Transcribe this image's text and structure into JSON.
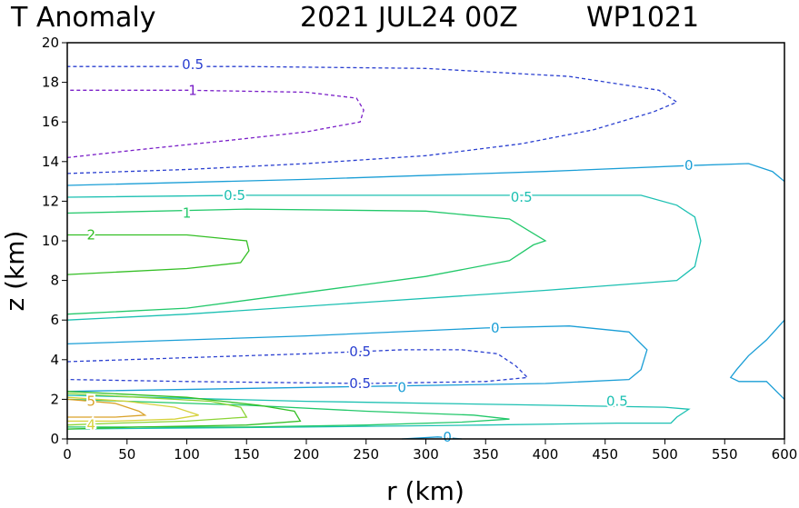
{
  "title": {
    "left": "T Anomaly",
    "date": "2021 JUL24 00Z",
    "storm": "WP1021"
  },
  "chart_data": {
    "type": "contour",
    "xlabel": "r (km)",
    "ylabel": "z (km)",
    "xlim": [
      0,
      600
    ],
    "ylim": [
      0,
      20
    ],
    "xticks": [
      "0",
      "50",
      "100",
      "150",
      "200",
      "250",
      "300",
      "350",
      "400",
      "450",
      "500",
      "550",
      "600"
    ],
    "yticks": [
      "0",
      "2",
      "4",
      "6",
      "8",
      "10",
      "12",
      "14",
      "16",
      "18",
      "20"
    ],
    "grid": false,
    "contours": [
      {
        "level": "-1",
        "color": "#7a1fc8",
        "dashed": true,
        "paths": [
          [
            [
              0,
              14.2
            ],
            [
              60,
              14.6
            ],
            [
              140,
              15.1
            ],
            [
              200,
              15.5
            ],
            [
              245,
              16.0
            ],
            [
              248,
              16.6
            ],
            [
              242,
              17.2
            ],
            [
              200,
              17.5
            ],
            [
              100,
              17.6
            ],
            [
              0,
              17.6
            ]
          ]
        ],
        "labels": [
          {
            "text": "1",
            "x": 105,
            "y": 17.6
          }
        ]
      },
      {
        "level": "-0.5",
        "color": "#2a3fd0",
        "dashed": true,
        "paths": [
          [
            [
              0,
              13.4
            ],
            [
              100,
              13.6
            ],
            [
              200,
              13.9
            ],
            [
              300,
              14.3
            ],
            [
              380,
              14.9
            ],
            [
              440,
              15.6
            ],
            [
              490,
              16.5
            ],
            [
              510,
              17.0
            ],
            [
              495,
              17.6
            ],
            [
              420,
              18.3
            ],
            [
              300,
              18.7
            ],
            [
              150,
              18.8
            ],
            [
              0,
              18.8
            ]
          ],
          [
            [
              0,
              3.9
            ],
            [
              100,
              4.1
            ],
            [
              200,
              4.3
            ],
            [
              280,
              4.5
            ],
            [
              330,
              4.5
            ],
            [
              360,
              4.3
            ],
            [
              375,
              3.7
            ],
            [
              385,
              3.1
            ],
            [
              350,
              2.9
            ],
            [
              250,
              2.8
            ],
            [
              100,
              2.9
            ],
            [
              0,
              3.0
            ]
          ]
        ],
        "labels": [
          {
            "text": "0.5",
            "x": 105,
            "y": 18.9
          },
          {
            "text": "0.5",
            "x": 245,
            "y": 4.4
          },
          {
            "text": "0.5",
            "x": 245,
            "y": 2.8
          }
        ]
      },
      {
        "level": "0",
        "color": "#1a9ed6",
        "dashed": false,
        "paths": [
          [
            [
              0,
              12.8
            ],
            [
              200,
              13.1
            ],
            [
              400,
              13.5
            ],
            [
              520,
              13.8
            ],
            [
              570,
              13.9
            ],
            [
              590,
              13.5
            ],
            [
              600,
              13.0
            ]
          ],
          [
            [
              0,
              4.8
            ],
            [
              200,
              5.2
            ],
            [
              350,
              5.6
            ],
            [
              420,
              5.7
            ],
            [
              470,
              5.4
            ],
            [
              485,
              4.5
            ],
            [
              480,
              3.5
            ],
            [
              470,
              3.0
            ],
            [
              400,
              2.8
            ],
            [
              200,
              2.6
            ],
            [
              0,
              2.4
            ]
          ],
          [
            [
              600,
              6.0
            ],
            [
              585,
              5.0
            ],
            [
              570,
              4.2
            ],
            [
              560,
              3.5
            ],
            [
              555,
              3.1
            ],
            [
              562,
              2.9
            ],
            [
              585,
              2.9
            ],
            [
              600,
              2.0
            ]
          ],
          [
            [
              280,
              0.0
            ],
            [
              310,
              0.1
            ],
            [
              330,
              0.0
            ]
          ]
        ],
        "labels": [
          {
            "text": "0",
            "x": 520,
            "y": 13.8
          },
          {
            "text": "0",
            "x": 358,
            "y": 5.6
          },
          {
            "text": "0",
            "x": 280,
            "y": 2.6
          },
          {
            "text": "0",
            "x": 318,
            "y": 0.1
          }
        ]
      },
      {
        "level": "0.5",
        "color": "#1cc0b2",
        "dashed": false,
        "paths": [
          [
            [
              0,
              12.2
            ],
            [
              150,
              12.3
            ],
            [
              350,
              12.3
            ],
            [
              450,
              12.3
            ],
            [
              480,
              12.3
            ],
            [
              510,
              11.8
            ],
            [
              525,
              11.2
            ],
            [
              530,
              10.0
            ],
            [
              525,
              8.7
            ],
            [
              510,
              8.0
            ],
            [
              400,
              7.5
            ],
            [
              250,
              6.9
            ],
            [
              100,
              6.3
            ],
            [
              0,
              6.0
            ]
          ],
          [
            [
              0,
              2.2
            ],
            [
              200,
              1.9
            ],
            [
              400,
              1.7
            ],
            [
              500,
              1.6
            ],
            [
              520,
              1.5
            ],
            [
              510,
              1.1
            ],
            [
              505,
              0.8
            ],
            [
              460,
              0.8
            ],
            [
              350,
              0.7
            ],
            [
              200,
              0.6
            ],
            [
              0,
              0.5
            ]
          ]
        ],
        "labels": [
          {
            "text": "0.5",
            "x": 140,
            "y": 12.3
          },
          {
            "text": "0.5",
            "x": 380,
            "y": 12.2
          },
          {
            "text": "0.5",
            "x": 460,
            "y": 1.9
          }
        ]
      },
      {
        "level": "1",
        "color": "#22c86a",
        "dashed": false,
        "paths": [
          [
            [
              0,
              11.4
            ],
            [
              150,
              11.6
            ],
            [
              300,
              11.5
            ],
            [
              370,
              11.1
            ],
            [
              400,
              10.0
            ],
            [
              390,
              9.8
            ],
            [
              370,
              9.0
            ],
            [
              300,
              8.2
            ],
            [
              200,
              7.4
            ],
            [
              100,
              6.6
            ],
            [
              0,
              6.3
            ]
          ],
          [
            [
              0,
              2.0
            ],
            [
              150,
              1.7
            ],
            [
              250,
              1.4
            ],
            [
              340,
              1.2
            ],
            [
              370,
              1.0
            ],
            [
              330,
              0.85
            ],
            [
              250,
              0.7
            ],
            [
              150,
              0.6
            ],
            [
              0,
              0.6
            ]
          ]
        ],
        "labels": [
          {
            "text": "1",
            "x": 100,
            "y": 11.4
          }
        ]
      },
      {
        "level": "2",
        "color": "#34bf25",
        "dashed": false,
        "paths": [
          [
            [
              0,
              10.3
            ],
            [
              100,
              10.3
            ],
            [
              150,
              10.0
            ],
            [
              152,
              9.5
            ],
            [
              145,
              8.9
            ],
            [
              100,
              8.6
            ],
            [
              0,
              8.3
            ]
          ],
          [
            [
              0,
              2.4
            ],
            [
              100,
              2.1
            ],
            [
              160,
              1.7
            ],
            [
              190,
              1.4
            ],
            [
              195,
              0.9
            ],
            [
              150,
              0.7
            ],
            [
              60,
              0.6
            ],
            [
              0,
              0.5
            ]
          ]
        ],
        "labels": [
          {
            "text": "2",
            "x": 20,
            "y": 10.3
          }
        ]
      },
      {
        "level": "3",
        "color": "#8bd436",
        "dashed": false,
        "paths": [
          [
            [
              0,
              2.3
            ],
            [
              60,
              2.1
            ],
            [
              120,
              1.9
            ],
            [
              145,
              1.6
            ],
            [
              150,
              1.1
            ],
            [
              100,
              0.9
            ],
            [
              40,
              0.8
            ],
            [
              0,
              0.7
            ]
          ]
        ],
        "labels": []
      },
      {
        "level": "4",
        "color": "#d6d23c",
        "dashed": false,
        "paths": [
          [
            [
              0,
              2.1
            ],
            [
              50,
              1.9
            ],
            [
              90,
              1.6
            ],
            [
              110,
              1.2
            ],
            [
              90,
              1.0
            ],
            [
              40,
              0.9
            ],
            [
              0,
              0.9
            ]
          ]
        ],
        "labels": [
          {
            "text": "4",
            "x": 20,
            "y": 0.7
          }
        ]
      },
      {
        "level": "5",
        "color": "#d9a229",
        "dashed": false,
        "paths": [
          [
            [
              0,
              2.0
            ],
            [
              40,
              1.8
            ],
            [
              60,
              1.4
            ],
            [
              65,
              1.2
            ],
            [
              40,
              1.1
            ],
            [
              0,
              1.1
            ]
          ]
        ],
        "labels": [
          {
            "text": "5",
            "x": 20,
            "y": 1.9
          }
        ]
      }
    ]
  }
}
